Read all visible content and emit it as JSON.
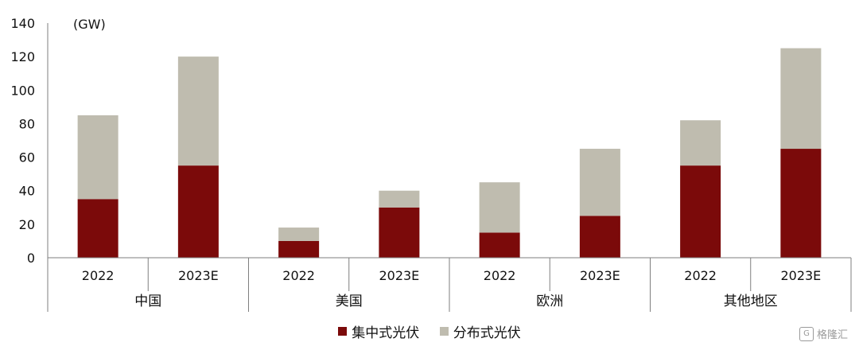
{
  "chart_data": {
    "type": "bar",
    "stacked": true,
    "unit_label": "(GW)",
    "ylim": [
      0,
      140
    ],
    "yticks": [
      0,
      20,
      40,
      60,
      80,
      100,
      120,
      140
    ],
    "groups": [
      {
        "name": "中国",
        "categories": [
          "2022",
          "2023E"
        ]
      },
      {
        "name": "美国",
        "categories": [
          "2022",
          "2023E"
        ]
      },
      {
        "name": "欧洲",
        "categories": [
          "2022",
          "2023E"
        ]
      },
      {
        "name": "其他地区",
        "categories": [
          "2022",
          "2023E"
        ]
      }
    ],
    "series": [
      {
        "name": "集中式光伏",
        "color": "#7b0a0a",
        "values": [
          35,
          55,
          10,
          30,
          15,
          25,
          55,
          65
        ]
      },
      {
        "name": "分布式光伏",
        "color": "#bfbcaf",
        "values": [
          50,
          65,
          8,
          10,
          30,
          40,
          27,
          60
        ]
      }
    ],
    "grid": false,
    "legend_position": "bottom"
  },
  "watermark": {
    "logo": "G",
    "text": "格隆汇"
  }
}
